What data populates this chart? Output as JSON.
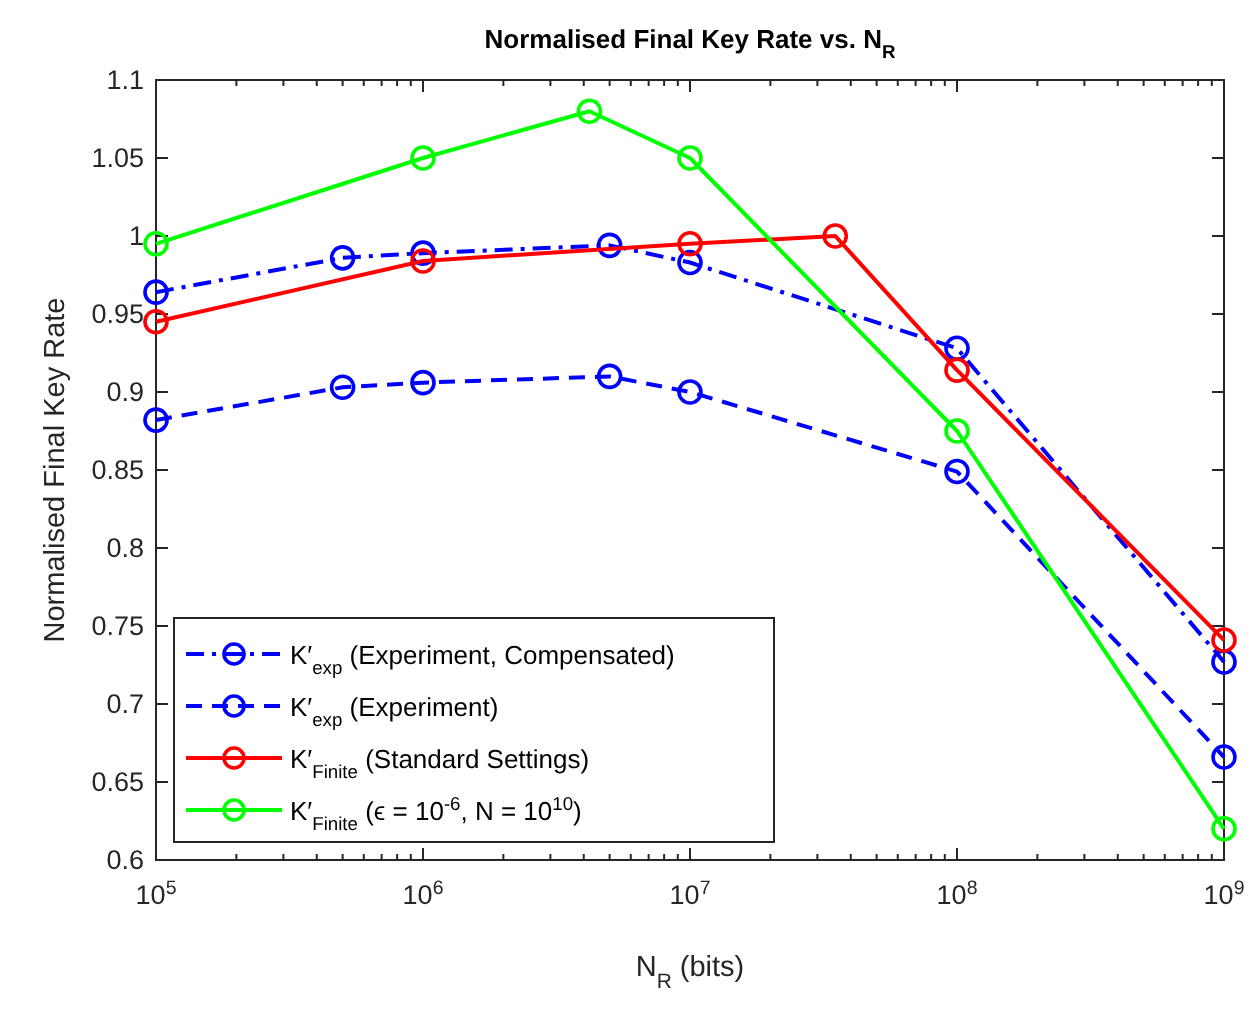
{
  "chart_data": {
    "type": "line",
    "title": "Normalised Final Key Rate vs. N$_{R}$",
    "xlabel": "N$_{R}$ (bits)",
    "ylabel": "Normalised Final Key Rate",
    "log": "x",
    "xlim": [
      100000,
      1000000000
    ],
    "xticks": [
      {
        "value": 100000,
        "label": "10$^{5}$"
      },
      {
        "value": 1000000,
        "label": "10$^{6}$"
      },
      {
        "value": 10000000,
        "label": "10$^{7}$"
      },
      {
        "value": 100000000,
        "label": "10$^{8}$"
      },
      {
        "value": 1000000000,
        "label": "10$^{9}$"
      }
    ],
    "ylim": [
      0.6,
      1.1
    ],
    "yticks": [
      0.6,
      0.65,
      0.7,
      0.75,
      0.8,
      0.85,
      0.9,
      0.95,
      1,
      1.05,
      1.1
    ],
    "grid": false,
    "legend": "bottom left",
    "marker": "circle",
    "series": [
      {
        "name": "K′$_{exp}$ (Experiment, Compensated)",
        "color": "#0000ff",
        "line_style": "dashdot",
        "x": [
          100000,
          500000,
          1000000,
          5000000,
          10000000,
          100000000,
          1000000000
        ],
        "values": [
          0.964,
          0.986,
          0.989,
          0.994,
          0.983,
          0.928,
          0.727
        ]
      },
      {
        "name": "K′$_{exp}$ (Experiment)",
        "color": "#0000ff",
        "line_style": "dashed",
        "x": [
          100000,
          500000,
          1000000,
          5000000,
          10000000,
          100000000,
          1000000000
        ],
        "values": [
          0.882,
          0.903,
          0.906,
          0.91,
          0.9,
          0.849,
          0.666
        ]
      },
      {
        "name": "K′$_{Finite}$ (Standard Settings)",
        "color": "#ff0000",
        "line_style": "solid",
        "x": [
          100000,
          1000000,
          10000000,
          35000000,
          100000000,
          1000000000
        ],
        "values": [
          0.945,
          0.984,
          0.995,
          1.0,
          0.914,
          0.741
        ]
      },
      {
        "name": "K′$_{Finite}$ (ϵ = 10$^{-6}$, N = 10$^{10}$)",
        "color": "#00ff00",
        "line_style": "solid",
        "x": [
          100000,
          1000000,
          4200000,
          10000000,
          100000000,
          1000000000
        ],
        "values": [
          0.995,
          1.05,
          1.08,
          1.05,
          0.875,
          0.62
        ]
      }
    ]
  }
}
